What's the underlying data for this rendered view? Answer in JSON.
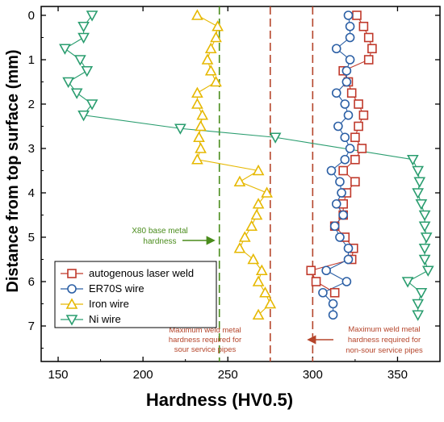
{
  "chart_data": {
    "type": "scatter",
    "title": "",
    "xlabel": "Hardness (HV0.5)",
    "ylabel": "Distance from top surface (mm)",
    "xlim": [
      140,
      375
    ],
    "ylim": [
      7.8,
      -0.2
    ],
    "x_ticks": [
      150,
      200,
      250,
      300,
      350
    ],
    "y_ticks": [
      0,
      1,
      2,
      3,
      4,
      5,
      6,
      7
    ],
    "grid": false,
    "legend_position": "lower-left",
    "series": [
      {
        "name": "autogenous laser weld",
        "marker": "square",
        "color": "#c0392b",
        "points": [
          {
            "x": 326,
            "y": 0.0
          },
          {
            "x": 330,
            "y": 0.25
          },
          {
            "x": 333,
            "y": 0.5
          },
          {
            "x": 335,
            "y": 0.75
          },
          {
            "x": 333,
            "y": 1.0
          },
          {
            "x": 318,
            "y": 1.25
          },
          {
            "x": 321,
            "y": 1.5
          },
          {
            "x": 323,
            "y": 1.75
          },
          {
            "x": 327,
            "y": 2.0
          },
          {
            "x": 330,
            "y": 2.25
          },
          {
            "x": 327,
            "y": 2.5
          },
          {
            "x": 325,
            "y": 2.75
          },
          {
            "x": 329,
            "y": 3.0
          },
          {
            "x": 325,
            "y": 3.25
          },
          {
            "x": 318,
            "y": 3.5
          },
          {
            "x": 325,
            "y": 3.75
          },
          {
            "x": 320,
            "y": 4.0
          },
          {
            "x": 318,
            "y": 4.25
          },
          {
            "x": 318,
            "y": 4.5
          },
          {
            "x": 313,
            "y": 4.75
          },
          {
            "x": 319,
            "y": 5.0
          },
          {
            "x": 324,
            "y": 5.25
          },
          {
            "x": 323,
            "y": 5.5
          },
          {
            "x": 299,
            "y": 5.75
          },
          {
            "x": 302,
            "y": 6.0
          },
          {
            "x": 313,
            "y": 6.25
          }
        ]
      },
      {
        "name": "ER70S wire",
        "marker": "circle",
        "color": "#2b5fa5",
        "points": [
          {
            "x": 321,
            "y": 0.0
          },
          {
            "x": 322,
            "y": 0.25
          },
          {
            "x": 322,
            "y": 0.5
          },
          {
            "x": 314,
            "y": 0.75
          },
          {
            "x": 322,
            "y": 1.0
          },
          {
            "x": 320,
            "y": 1.25
          },
          {
            "x": 320,
            "y": 1.5
          },
          {
            "x": 314,
            "y": 1.75
          },
          {
            "x": 319,
            "y": 2.0
          },
          {
            "x": 321,
            "y": 2.25
          },
          {
            "x": 315,
            "y": 2.5
          },
          {
            "x": 319,
            "y": 2.75
          },
          {
            "x": 322,
            "y": 3.0
          },
          {
            "x": 319,
            "y": 3.25
          },
          {
            "x": 311,
            "y": 3.5
          },
          {
            "x": 316,
            "y": 3.75
          },
          {
            "x": 317,
            "y": 4.0
          },
          {
            "x": 314,
            "y": 4.25
          },
          {
            "x": 318,
            "y": 4.5
          },
          {
            "x": 313,
            "y": 4.75
          },
          {
            "x": 316,
            "y": 5.0
          },
          {
            "x": 321,
            "y": 5.25
          },
          {
            "x": 321,
            "y": 5.5
          },
          {
            "x": 308,
            "y": 5.75
          },
          {
            "x": 320,
            "y": 6.0
          },
          {
            "x": 306,
            "y": 6.25
          },
          {
            "x": 312,
            "y": 6.5
          },
          {
            "x": 312,
            "y": 6.75
          }
        ]
      },
      {
        "name": "Iron wire",
        "marker": "triangle-up",
        "color": "#e6b800",
        "points": [
          {
            "x": 232,
            "y": 0.0
          },
          {
            "x": 244,
            "y": 0.25
          },
          {
            "x": 243,
            "y": 0.5
          },
          {
            "x": 240,
            "y": 0.75
          },
          {
            "x": 238,
            "y": 1.0
          },
          {
            "x": 240,
            "y": 1.25
          },
          {
            "x": 243,
            "y": 1.5
          },
          {
            "x": 232,
            "y": 1.75
          },
          {
            "x": 232,
            "y": 2.0
          },
          {
            "x": 235,
            "y": 2.25
          },
          {
            "x": 234,
            "y": 2.5
          },
          {
            "x": 233,
            "y": 2.75
          },
          {
            "x": 234,
            "y": 3.0
          },
          {
            "x": 232,
            "y": 3.25
          },
          {
            "x": 268,
            "y": 3.5
          },
          {
            "x": 257,
            "y": 3.75
          },
          {
            "x": 273,
            "y": 4.0
          },
          {
            "x": 268,
            "y": 4.25
          },
          {
            "x": 267,
            "y": 4.5
          },
          {
            "x": 264,
            "y": 4.75
          },
          {
            "x": 260,
            "y": 5.0
          },
          {
            "x": 257,
            "y": 5.25
          },
          {
            "x": 265,
            "y": 5.5
          },
          {
            "x": 270,
            "y": 5.75
          },
          {
            "x": 268,
            "y": 6.0
          },
          {
            "x": 272,
            "y": 6.25
          },
          {
            "x": 275,
            "y": 6.5
          },
          {
            "x": 268,
            "y": 6.75
          }
        ]
      },
      {
        "name": "Ni wire",
        "marker": "triangle-down",
        "color": "#2a9d6f",
        "points": [
          {
            "x": 170,
            "y": 0.0
          },
          {
            "x": 165,
            "y": 0.25
          },
          {
            "x": 165,
            "y": 0.5
          },
          {
            "x": 154,
            "y": 0.75
          },
          {
            "x": 163,
            "y": 1.0
          },
          {
            "x": 167,
            "y": 1.25
          },
          {
            "x": 156,
            "y": 1.5
          },
          {
            "x": 161,
            "y": 1.75
          },
          {
            "x": 170,
            "y": 2.0
          },
          {
            "x": 165,
            "y": 2.25
          },
          {
            "x": 222,
            "y": 2.55
          },
          {
            "x": 278,
            "y": 2.75
          },
          {
            "x": 359,
            "y": 3.25
          },
          {
            "x": 362,
            "y": 3.5
          },
          {
            "x": 363,
            "y": 3.75
          },
          {
            "x": 362,
            "y": 4.0
          },
          {
            "x": 364,
            "y": 4.25
          },
          {
            "x": 366,
            "y": 4.5
          },
          {
            "x": 366,
            "y": 4.75
          },
          {
            "x": 367,
            "y": 5.0
          },
          {
            "x": 366,
            "y": 5.25
          },
          {
            "x": 366,
            "y": 5.5
          },
          {
            "x": 368,
            "y": 5.75
          },
          {
            "x": 356,
            "y": 6.0
          },
          {
            "x": 364,
            "y": 6.25
          },
          {
            "x": 362,
            "y": 6.5
          },
          {
            "x": 362,
            "y": 6.75
          }
        ]
      }
    ],
    "reference_lines": [
      {
        "x": 245,
        "color": "#4a8c1c",
        "label": "X80 base metal hardness"
      },
      {
        "x": 275,
        "color": "#b5452b",
        "label": "Maximum weld metal hardness required for sour service pipes"
      },
      {
        "x": 300,
        "color": "#b5452b",
        "label": "Maximum weld metal hardness required for non-sour service pipes"
      }
    ],
    "annotations": {
      "x80_line1": "X80 base metal",
      "x80_line2": "hardness",
      "sour_line1": "Maximum weld metal",
      "sour_line2": "hardness required for",
      "sour_line3": "sour service pipes",
      "nonsour_line1": "Maximum weld metal",
      "nonsour_line2": "hardness required for",
      "nonsour_line3": "non-sour service pipes"
    },
    "colors": {
      "x80_text": "#4a8c1c",
      "reference_text": "#b5452b",
      "axis": "#000000"
    }
  }
}
